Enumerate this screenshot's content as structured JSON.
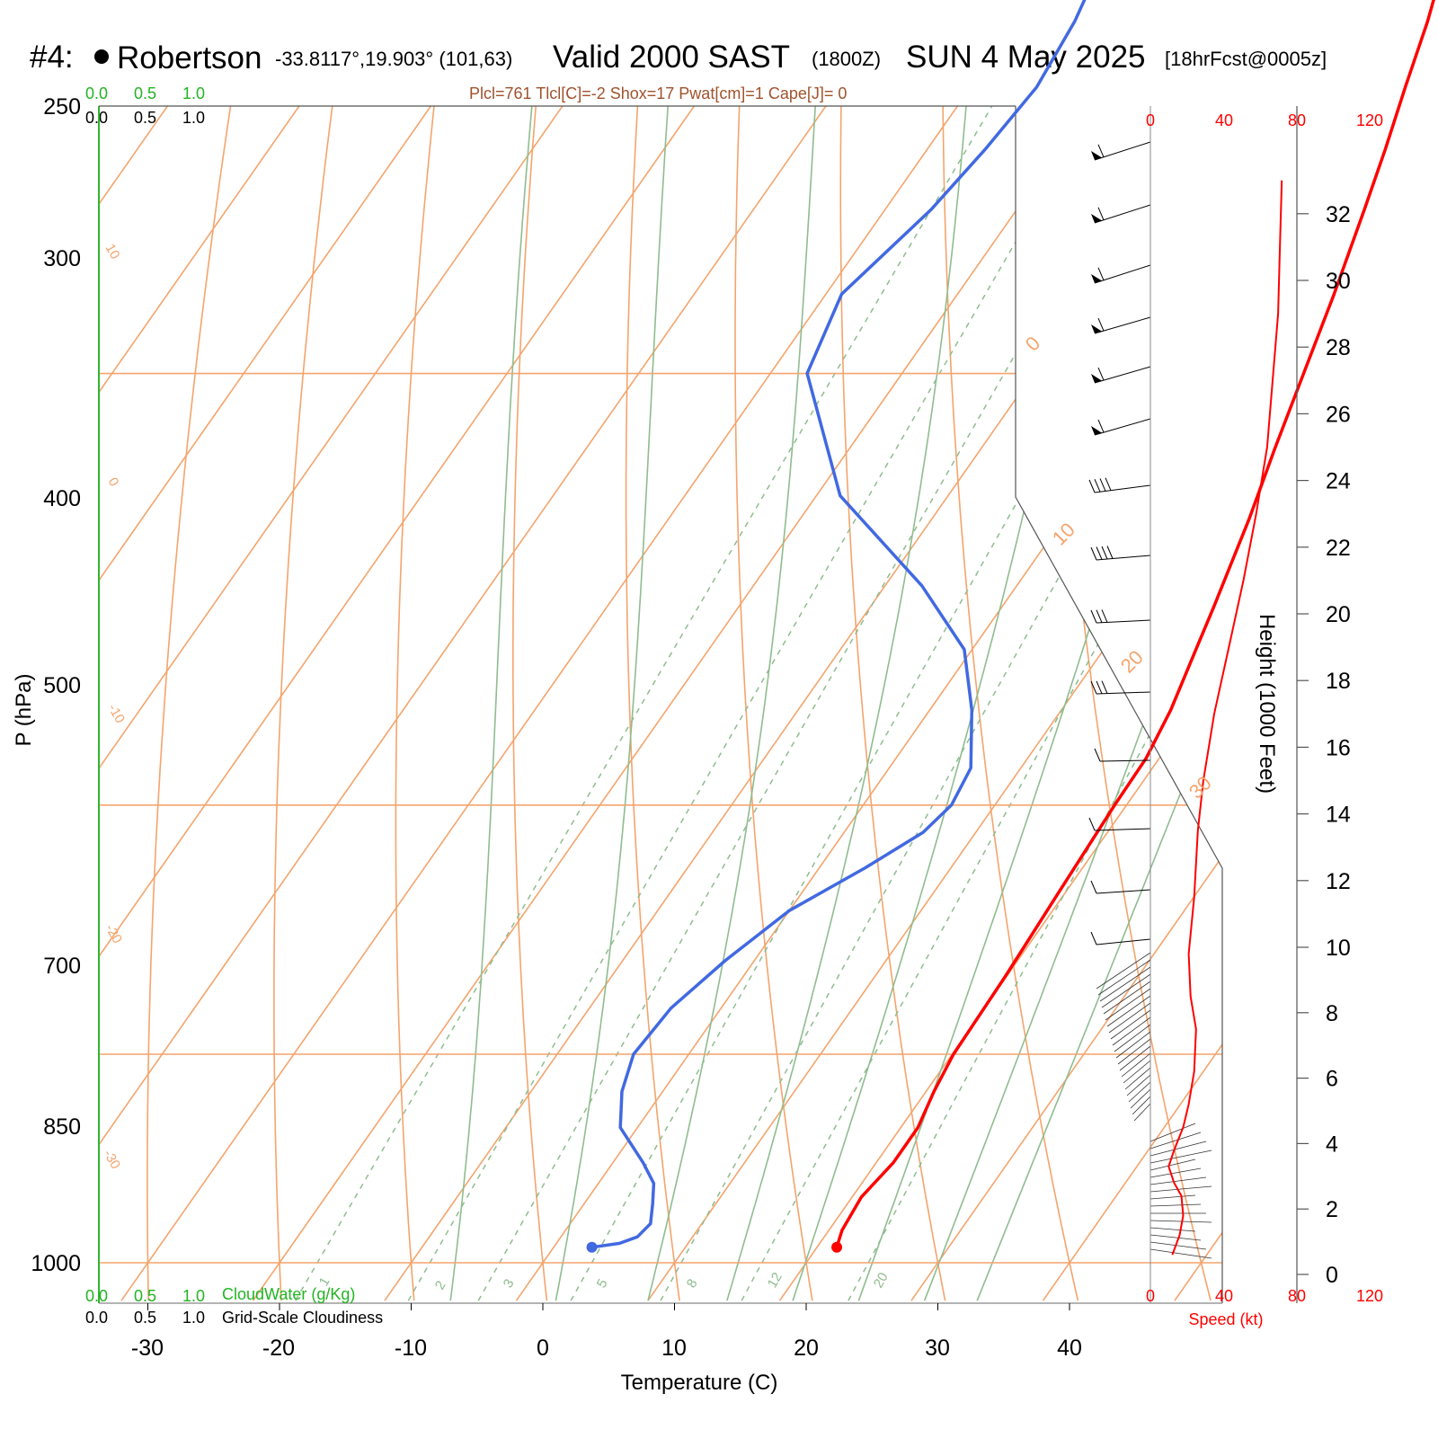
{
  "header": {
    "station_id": "#4:",
    "station_name": "Robertson",
    "coords": "-33.8117°,19.903° (101,63)",
    "valid_label": "Valid 2000 SAST",
    "zulu": "(1800Z)",
    "date": "SUN 4 May 2025",
    "forecast": "[18hrFcst@0005z]"
  },
  "stats_line": "Plcl=761 Tlcl[C]=-2 Shox=17 Pwat[cm]=1 Cape[J]= 0",
  "cloud_scales": {
    "top_green": [
      "0.0",
      "0.5",
      "1.0"
    ],
    "top_black": [
      "0.0",
      "0.5",
      "1.0"
    ],
    "bottom_green": [
      "0.0",
      "0.5",
      "1.0"
    ],
    "bottom_black": [
      "0.0",
      "0.5",
      "1.0"
    ],
    "cloudwater_label": "CloudWater (g/Kg)",
    "cloudiness_label": "Grid-Scale Cloudiness"
  },
  "axes": {
    "y_title": "P (hPa)",
    "x_title": "Temperature (C)",
    "height_title": "Height (1000 Feet)",
    "speed_title": "Speed (kt)",
    "pressure_ticks": [
      "250",
      "300",
      "400",
      "500",
      "700",
      "850",
      "1000"
    ],
    "temperature_ticks": [
      "-30",
      "-20",
      "-10",
      "0",
      "10",
      "20",
      "30",
      "40"
    ],
    "height_ticks": [
      "0",
      "2",
      "4",
      "6",
      "8",
      "10",
      "12",
      "14",
      "16",
      "18",
      "20",
      "22",
      "24",
      "26",
      "28",
      "30",
      "32"
    ],
    "speed_ticks": [
      "0",
      "40",
      "80",
      "120"
    ],
    "isotherm_labels_right": [
      "0",
      "10",
      "20",
      "30"
    ],
    "isotherm_labels_left": [
      "10",
      "0",
      "-10",
      "-20",
      "-30"
    ],
    "mixing_ratio_labels": [
      "1",
      "2",
      "3",
      "5",
      "8",
      "12",
      "20"
    ]
  },
  "colors": {
    "isotherm": "#f4a46c",
    "adiabat": "#8fbc8f",
    "mixing_ratio": "#8fbc8f",
    "temperature": "#ff0000",
    "dewpoint": "#4169e1",
    "wind_speed": "#ff0000",
    "cloud_green": "#22b422"
  },
  "chart_data": {
    "type": "line",
    "title": "Robertson Valid 2000 SAST (1800Z) SUN 4 May 2025",
    "xlabel": "Temperature (C)",
    "ylabel": "P (hPa)",
    "ylim": [
      1000,
      250
    ],
    "log_pressure": true,
    "xlim": [
      -33,
      36
    ],
    "series": [
      {
        "type": "temperature",
        "points": [
          {
            "p": 988,
            "t": 21.5
          },
          {
            "p": 975,
            "t": 21.0
          },
          {
            "p": 950,
            "t": 20.7
          },
          {
            "p": 925,
            "t": 21.3
          },
          {
            "p": 900,
            "t": 21.3
          },
          {
            "p": 875,
            "t": 20.6
          },
          {
            "p": 850,
            "t": 20.1
          },
          {
            "p": 800,
            "t": 19.9
          },
          {
            "p": 750,
            "t": 19.5
          },
          {
            "p": 700,
            "t": 19.1
          },
          {
            "p": 675,
            "t": 19.0
          },
          {
            "p": 650,
            "t": 18.3
          },
          {
            "p": 620,
            "t": 17.0
          },
          {
            "p": 600,
            "t": 16.1
          },
          {
            "p": 560,
            "t": 14.1
          },
          {
            "p": 530,
            "t": 12.3
          },
          {
            "p": 500,
            "t": 10.5
          },
          {
            "p": 470,
            "t": 8.6
          },
          {
            "p": 440,
            "t": 6.4
          },
          {
            "p": 420,
            "t": 4.8
          },
          {
            "p": 400,
            "t": 3.0
          },
          {
            "p": 380,
            "t": 1.2
          },
          {
            "p": 360,
            "t": -1.0
          },
          {
            "p": 340,
            "t": -3.4
          },
          {
            "p": 320,
            "t": -5.9
          },
          {
            "p": 300,
            "t": -8.5
          },
          {
            "p": 280,
            "t": -10.9
          },
          {
            "p": 260,
            "t": -13.4
          }
        ]
      },
      {
        "type": "dewpoint",
        "points": [
          {
            "p": 988,
            "t": 2.9
          },
          {
            "p": 985,
            "t": 4.8
          },
          {
            "p": 980,
            "t": 5.8
          },
          {
            "p": 970,
            "t": 6.1
          },
          {
            "p": 955,
            "t": 5.2
          },
          {
            "p": 940,
            "t": 4.2
          },
          {
            "p": 925,
            "t": 2.3
          },
          {
            "p": 900,
            "t": -1.3
          },
          {
            "p": 875,
            "t": -3.1
          },
          {
            "p": 850,
            "t": -4.2
          },
          {
            "p": 820,
            "t": -3.8
          },
          {
            "p": 790,
            "t": -2.2
          },
          {
            "p": 760,
            "t": 0.0
          },
          {
            "p": 735,
            "t": 3.5
          },
          {
            "p": 715,
            "t": 6.0
          },
          {
            "p": 700,
            "t": 6.7
          },
          {
            "p": 680,
            "t": 6.2
          },
          {
            "p": 650,
            "t": 3.2
          },
          {
            "p": 620,
            "t": -0.6
          },
          {
            "p": 590,
            "t": -7.2
          },
          {
            "p": 550,
            "t": -18.2
          },
          {
            "p": 500,
            "t": -27.2
          },
          {
            "p": 470,
            "t": -28.8
          },
          {
            "p": 440,
            "t": -26.5
          },
          {
            "p": 420,
            "t": -25.6
          },
          {
            "p": 400,
            "t": -25.0
          },
          {
            "p": 380,
            "t": -25.6
          },
          {
            "p": 360,
            "t": -26.9
          },
          {
            "p": 340,
            "t": -28.3
          },
          {
            "p": 320,
            "t": -29.9
          },
          {
            "p": 300,
            "t": -31.8
          },
          {
            "p": 280,
            "t": -33.8
          },
          {
            "p": 260,
            "t": -36.6
          }
        ]
      }
    ],
    "wind_speed_profile": {
      "xlabel": "Speed (kt)",
      "ylabel": "Height (1000 Feet)",
      "xlim": [
        0,
        120
      ],
      "ylim": [
        0,
        33
      ],
      "points": [
        {
          "h": 0.6,
          "s": 12
        },
        {
          "h": 1.2,
          "s": 16
        },
        {
          "h": 1.8,
          "s": 18
        },
        {
          "h": 2.4,
          "s": 17
        },
        {
          "h": 2.8,
          "s": 13
        },
        {
          "h": 3.3,
          "s": 10
        },
        {
          "h": 3.8,
          "s": 13
        },
        {
          "h": 4.5,
          "s": 18
        },
        {
          "h": 5.2,
          "s": 21
        },
        {
          "h": 6.2,
          "s": 24
        },
        {
          "h": 7.5,
          "s": 25
        },
        {
          "h": 8.5,
          "s": 22
        },
        {
          "h": 9.8,
          "s": 21
        },
        {
          "h": 11.5,
          "s": 24
        },
        {
          "h": 13.5,
          "s": 26
        },
        {
          "h": 15.0,
          "s": 29
        },
        {
          "h": 17.0,
          "s": 35
        },
        {
          "h": 19.0,
          "s": 43
        },
        {
          "h": 21.0,
          "s": 51
        },
        {
          "h": 23.0,
          "s": 58
        },
        {
          "h": 25.0,
          "s": 64
        },
        {
          "h": 27.0,
          "s": 67
        },
        {
          "h": 29.0,
          "s": 70
        },
        {
          "h": 31.0,
          "s": 71
        },
        {
          "h": 33.0,
          "s": 72
        }
      ]
    }
  }
}
